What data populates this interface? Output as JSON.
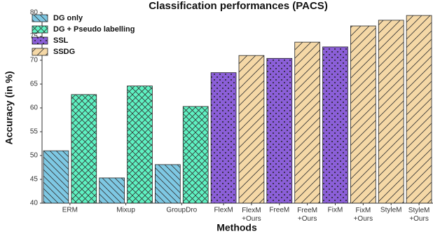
{
  "chart_data": {
    "type": "bar",
    "title": "Classification performances (PACS)",
    "x_label": "Methods",
    "y_label": "Accuracy (in %)",
    "categories": [
      "ERM",
      "Mixup",
      "GroupDro",
      "FlexM",
      "FlexM\n+Ours",
      "FreeM",
      "FreeM\n+Ours",
      "FixM",
      "FixM\n+Ours",
      "StyleM",
      "StyleM\n+Ours"
    ],
    "series": [
      {
        "name": "DG only",
        "color": "#7ec8e3",
        "values": [
          51,
          45.3,
          48.1,
          null,
          null,
          null,
          null,
          null,
          null,
          null,
          null
        ]
      },
      {
        "name": "DG + Pseudo labelling",
        "color": "#5ef2c2",
        "values": [
          62.8,
          64.6,
          60.3,
          null,
          null,
          null,
          null,
          null,
          null,
          null,
          null
        ]
      },
      {
        "name": "SSL",
        "color": "#8b5fd8",
        "values": [
          null,
          null,
          null,
          67.4,
          null,
          70.4,
          null,
          72.8,
          null,
          null,
          null
        ]
      },
      {
        "name": "SSDG",
        "color": "#f5d8a6",
        "values": [
          null,
          null,
          null,
          null,
          71,
          null,
          73.8,
          null,
          77.2,
          78.4,
          79.4
        ]
      }
    ],
    "ylim": [
      40,
      80
    ],
    "yticks": [
      40,
      45,
      50,
      55,
      60,
      65,
      70,
      75,
      80
    ],
    "grid": false,
    "legend": "upper left"
  }
}
